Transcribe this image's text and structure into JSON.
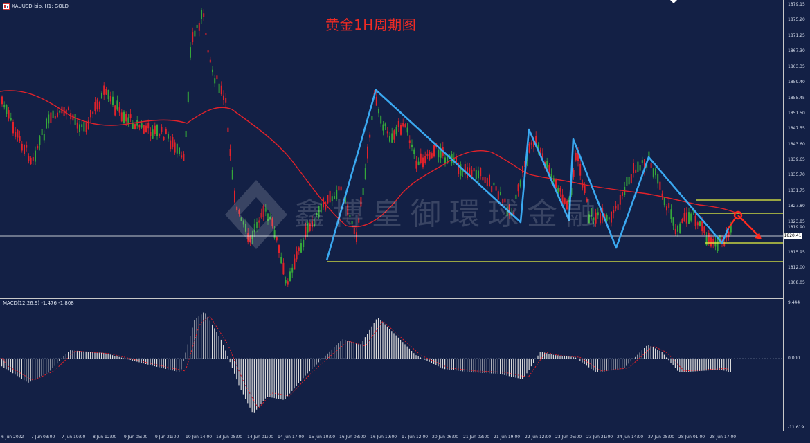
{
  "window": {
    "symbol": "XAUUSD-bib, H1:  GOLD",
    "overlay_title": "黄金1H周期图",
    "watermark": "鑫博皇御環球金融"
  },
  "price_axis": {
    "labels": [
      "1879.15",
      "1875.20",
      "1871.25",
      "1867.30",
      "1863.35",
      "1859.40",
      "1855.45",
      "1851.50",
      "1847.55",
      "1843.60",
      "1839.65",
      "1835.70",
      "1831.75",
      "1827.80",
      "1823.85",
      "1819.90",
      "1815.95",
      "1812.00",
      "1808.05"
    ],
    "current_price": "1820.41"
  },
  "macd_axis": {
    "labels": [
      "9.444",
      "0.000",
      "-11.619"
    ]
  },
  "macd_indicator": {
    "label": "MACD(12,26,9) -1.476 -1.808"
  },
  "time_axis": {
    "labels": [
      "6 Jun 2022",
      "7 Jun 03:00",
      "7 Jun 19:00",
      "8 Jun 12:00",
      "9 Jun 05:00",
      "9 Jun 21:00",
      "10 Jun 14:00",
      "13 Jun 08:00",
      "14 Jun 01:00",
      "14 Jun 17:00",
      "15 Jun 10:00",
      "16 Jun 03:00",
      "16 Jun 19:00",
      "17 Jun 12:00",
      "20 Jun 06:00",
      "21 Jun 03:00",
      "21 Jun 19:00",
      "22 Jun 12:00",
      "23 Jun 05:00",
      "23 Jun 21:00",
      "24 Jun 14:00",
      "27 Jun 08:00",
      "28 Jun 01:00",
      "28 Jun 17:00"
    ]
  },
  "colors": {
    "background": "#132045",
    "bull_candle": "#35a83a",
    "bear_candle": "#e2222a",
    "moving_average": "#e2222a",
    "zigzag": "#3aa8f0",
    "level_lines": "#e9f542",
    "current_price_line": "#ffffff",
    "macd_histogram": "#d9d9d9",
    "macd_signal": "#e2222a",
    "forecast_arrow": "#ff2a1f"
  }
}
